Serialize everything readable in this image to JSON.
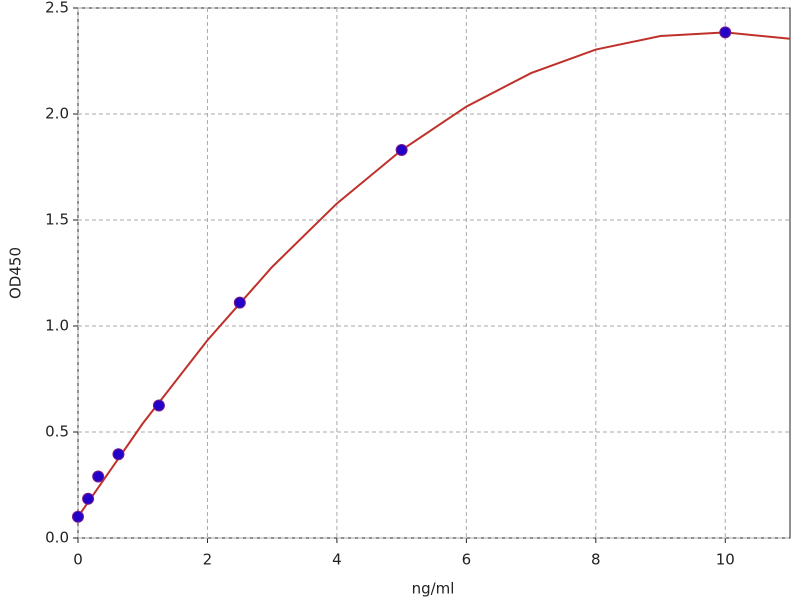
{
  "chart_data": {
    "type": "scatter",
    "xlabel": "ng/ml",
    "ylabel": "OD450",
    "xlim": [
      0,
      11
    ],
    "ylim": [
      0,
      2.5
    ],
    "xticks": [
      0,
      2,
      4,
      6,
      8,
      10
    ],
    "yticks": [
      {
        "value": 0,
        "label": "0.0"
      },
      0.5,
      {
        "value": 1,
        "label": "1.0"
      },
      1.5,
      {
        "value": 2,
        "label": "2.0"
      },
      2.5
    ],
    "grid": true,
    "series": [
      {
        "type": "line",
        "color": "#c0302a",
        "x": [
          0,
          1,
          2,
          3,
          4,
          5,
          6,
          7,
          8,
          9,
          10,
          11
        ],
        "values": [
          0.1,
          0.54,
          0.933,
          1.279,
          1.578,
          1.83,
          2.035,
          2.193,
          2.304,
          2.368,
          2.385,
          2.355
        ]
      },
      {
        "type": "scatter",
        "color": "#2200c8",
        "x": [
          0,
          0.156,
          0.312,
          0.625,
          1.25,
          2.5,
          5,
          10
        ],
        "values": [
          0.1,
          0.185,
          0.29,
          0.395,
          0.625,
          1.11,
          1.83,
          2.385
        ]
      }
    ]
  }
}
